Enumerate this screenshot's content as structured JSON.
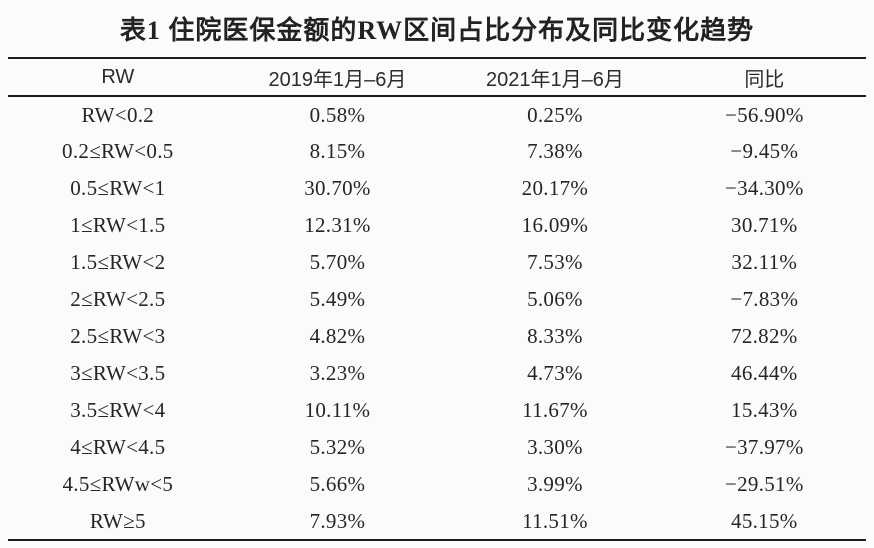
{
  "title": "表1 住院医保金额的RW区间占比分布及同比变化趋势",
  "colors": {
    "background": "#fbfbfa",
    "text": "#262626",
    "rule": "#1c1c1c"
  },
  "table": {
    "columns": [
      "RW",
      "2019年1月–6月",
      "2021年1月–6月",
      "同比"
    ],
    "rows": [
      [
        "RW<0.2",
        "0.58%",
        "0.25%",
        "−56.90%"
      ],
      [
        "0.2≤RW<0.5",
        "8.15%",
        "7.38%",
        "−9.45%"
      ],
      [
        "0.5≤RW<1",
        "30.70%",
        "20.17%",
        "−34.30%"
      ],
      [
        "1≤RW<1.5",
        "12.31%",
        "16.09%",
        "30.71%"
      ],
      [
        "1.5≤RW<2",
        "5.70%",
        "7.53%",
        "32.11%"
      ],
      [
        "2≤RW<2.5",
        "5.49%",
        "5.06%",
        "−7.83%"
      ],
      [
        "2.5≤RW<3",
        "4.82%",
        "8.33%",
        "72.82%"
      ],
      [
        "3≤RW<3.5",
        "3.23%",
        "4.73%",
        "46.44%"
      ],
      [
        "3.5≤RW<4",
        "10.11%",
        "11.67%",
        "15.43%"
      ],
      [
        "4≤RW<4.5",
        "5.32%",
        "3.30%",
        "−37.97%"
      ],
      [
        "4.5≤RWw<5",
        "5.66%",
        "3.99%",
        "−29.51%"
      ],
      [
        "RW≥5",
        "7.93%",
        "11.51%",
        "45.15%"
      ]
    ]
  }
}
